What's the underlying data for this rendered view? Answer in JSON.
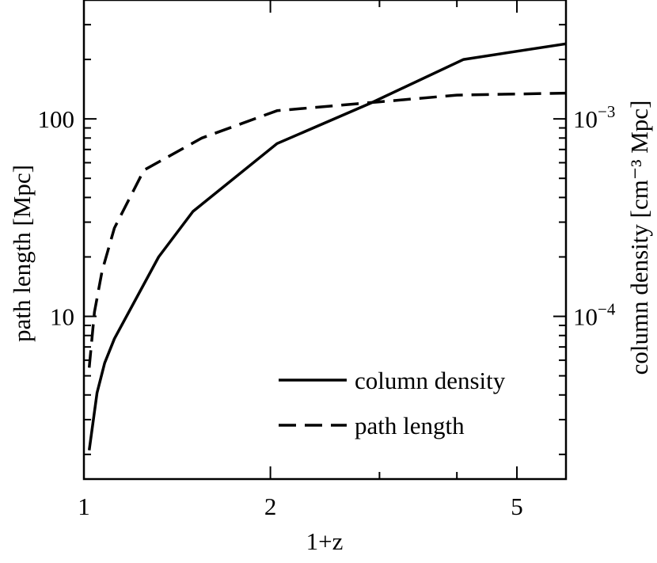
{
  "chart_data": {
    "type": "line",
    "xlabel": "1+z",
    "ylabel": "path length [Mpc]",
    "ylabel_right": "column density [cm⁻³ Mpc]",
    "x_scale": "log",
    "y_scale": "log",
    "y_right_scale": "log",
    "xlim": [
      1,
      6
    ],
    "ylim": [
      1.5,
      400
    ],
    "ylim_right": [
      1.5e-05,
      0.004
    ],
    "x_ticks": [
      {
        "value": 1,
        "label": "1"
      },
      {
        "value": 2,
        "label": "2"
      },
      {
        "value": 5,
        "label": "5"
      }
    ],
    "y_ticks": [
      {
        "value": 10,
        "label": "10"
      },
      {
        "value": 100,
        "label": "100"
      }
    ],
    "y_right_ticks": [
      {
        "value": 0.0001,
        "base": "10",
        "exp": "−4"
      },
      {
        "value": 0.001,
        "base": "10",
        "exp": "−3"
      }
    ],
    "legend_position": "bottom-right",
    "series": [
      {
        "name": "column density",
        "axis": "right",
        "style": "solid",
        "color": "#000000",
        "x": [
          1.02,
          1.05,
          1.08,
          1.12,
          1.32,
          1.5,
          2.05,
          2.9,
          4.1,
          6.0
        ],
        "y": [
          2.1e-05,
          4.1e-05,
          5.8e-05,
          7.7e-05,
          0.0002,
          0.00034,
          0.00075,
          0.0012,
          0.002,
          0.0024
        ]
      },
      {
        "name": "path length",
        "axis": "left",
        "style": "dashed",
        "color": "#000000",
        "x": [
          1.02,
          1.04,
          1.07,
          1.12,
          1.25,
          1.55,
          2.05,
          3.0,
          4.0,
          6.0
        ],
        "y": [
          5.5,
          10.5,
          17,
          28,
          55,
          80,
          110,
          122,
          132,
          135
        ]
      }
    ]
  }
}
